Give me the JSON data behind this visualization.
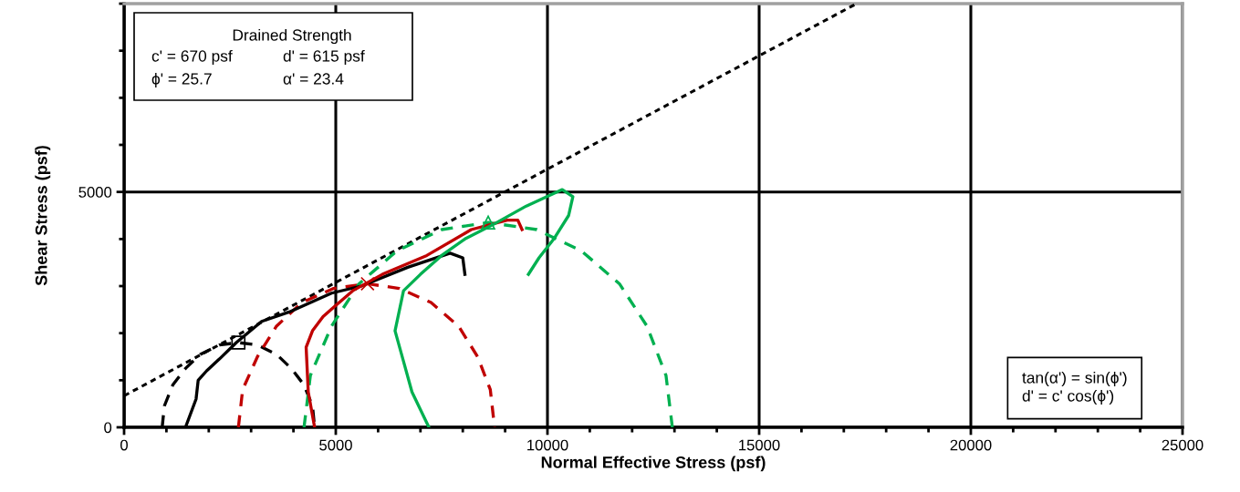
{
  "chart_data": {
    "type": "line",
    "xlabel": "Normal Effective Stress (psf)",
    "ylabel": "Shear Stress (psf)",
    "xlim": [
      0,
      25000
    ],
    "ylim": [
      0,
      9000
    ],
    "xticks": [
      0,
      {
        "value": 1000,
        "label": null
      },
      {
        "value": 2000,
        "label": null
      },
      {
        "value": 3000,
        "label": null
      },
      {
        "value": 4000,
        "label": null
      },
      5000,
      {
        "value": 6000,
        "label": null
      },
      {
        "value": 7000,
        "label": null
      },
      {
        "value": 8000,
        "label": null
      },
      {
        "value": 9000,
        "label": null
      },
      10000,
      {
        "value": 11000,
        "label": null
      },
      {
        "value": 12000,
        "label": null
      },
      {
        "value": 13000,
        "label": null
      },
      {
        "value": 14000,
        "label": null
      },
      15000,
      {
        "value": 16000,
        "label": null
      },
      {
        "value": 17000,
        "label": null
      },
      {
        "value": 18000,
        "label": null
      },
      {
        "value": 19000,
        "label": null
      },
      20000,
      {
        "value": 21000,
        "label": null
      },
      {
        "value": 22000,
        "label": null
      },
      {
        "value": 23000,
        "label": null
      },
      {
        "value": 24000,
        "label": null
      },
      25000
    ],
    "yticks": [
      0,
      {
        "value": 1000,
        "label": null
      },
      {
        "value": 2000,
        "label": null
      },
      {
        "value": 3000,
        "label": null
      },
      {
        "value": 4000,
        "label": null
      },
      5000,
      {
        "value": 6000,
        "label": null
      },
      {
        "value": 7000,
        "label": null
      },
      {
        "value": 8000,
        "label": null
      },
      {
        "value": 9000,
        "label": null
      }
    ],
    "grid": true,
    "legend": false,
    "series": [
      {
        "line_style": "dashed",
        "color": "#000000",
        "x": [
          0,
          17300
        ],
        "values": [
          670,
          9000
        ]
      },
      {
        "line_style": "dashed",
        "color": "#000000",
        "x": [
          900,
          950,
          1150,
          1450,
          1800,
          2250,
          2700,
          3150,
          3600,
          3950,
          4250,
          4450,
          4500
        ],
        "values": [
          0,
          450,
          900,
          1250,
          1550,
          1750,
          1800,
          1750,
          1550,
          1250,
          900,
          450,
          0
        ]
      },
      {
        "line_style": "dashed",
        "color": "#c00000",
        "x": [
          2700,
          2800,
          3150,
          3600,
          4200,
          4950,
          5750,
          6500,
          7250,
          7900,
          8350,
          8650,
          8750
        ],
        "values": [
          0,
          800,
          1500,
          2150,
          2650,
          2950,
          3050,
          2950,
          2650,
          2150,
          1500,
          800,
          0
        ]
      },
      {
        "line_style": "dashed",
        "color": "#00b050",
        "x": [
          4250,
          4400,
          4900,
          5550,
          6450,
          7500,
          8600,
          9750,
          10800,
          11700,
          12350,
          12800,
          12950
        ],
        "values": [
          0,
          1100,
          2150,
          3050,
          3750,
          4200,
          4350,
          4200,
          3750,
          3050,
          2150,
          1100,
          0
        ]
      },
      {
        "line_style": "solid",
        "color": "#000000",
        "x": [
          1450,
          1700,
          1750,
          1950,
          2250,
          2650,
          3250,
          3900,
          4900,
          5600,
          6700,
          7700,
          8000,
          8050
        ],
        "values": [
          0,
          600,
          1000,
          1200,
          1450,
          1800,
          2250,
          2450,
          2850,
          3000,
          3400,
          3700,
          3600,
          3250
        ]
      },
      {
        "line_style": "solid",
        "color": "#c00000",
        "x": [
          4500,
          4350,
          4300,
          4450,
          4700,
          4950,
          5400,
          6100,
          7150,
          8200,
          9050,
          9300,
          9400
        ],
        "values": [
          0,
          750,
          1700,
          2050,
          2350,
          2550,
          2900,
          3250,
          3650,
          4200,
          4400,
          4400,
          4200
        ]
      },
      {
        "line_style": "solid",
        "color": "#00b050",
        "x": [
          7200,
          6800,
          6600,
          6400,
          6600,
          7000,
          7500,
          8050,
          8700,
          9500,
          10350,
          10600,
          10500,
          10150,
          9800,
          9550
        ],
        "values": [
          0,
          750,
          1400,
          2050,
          2900,
          3250,
          3650,
          4000,
          4300,
          4700,
          5050,
          4900,
          4500,
          4000,
          3600,
          3250
        ]
      },
      {
        "type": "scatter",
        "marker": "square",
        "color": "#000000",
        "x": [
          2700
        ],
        "values": [
          1800
        ]
      },
      {
        "type": "scatter",
        "marker": "cross",
        "color": "#c00000",
        "x": [
          5750
        ],
        "values": [
          3050
        ]
      },
      {
        "type": "scatter",
        "marker": "triangle",
        "color": "#00b050",
        "x": [
          8600
        ],
        "values": [
          4350
        ]
      }
    ],
    "annotations": [
      "Drained Strength",
      "c' = 670 psf",
      "d' = 615 psf",
      "ϕ' = 25.7",
      "α' = 23.4",
      "tan(α') = sin(ϕ')\nd' = c' cos(ϕ')"
    ]
  }
}
